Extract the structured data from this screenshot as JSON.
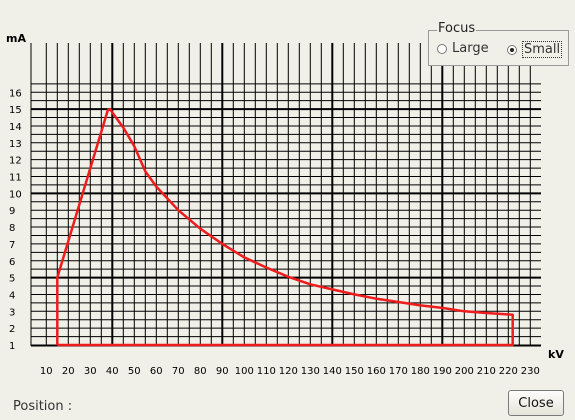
{
  "focus": {
    "title": "Focus",
    "options": [
      {
        "label": "Large",
        "selected": false
      },
      {
        "label": "Small",
        "selected": true
      }
    ]
  },
  "position_label": "Position :",
  "close_label": "Close",
  "chart_data": {
    "type": "line",
    "xlabel": "kV",
    "ylabel": "mA",
    "xlim": [
      10,
      230
    ],
    "ylim": [
      1,
      16
    ],
    "x_ticks": [
      10,
      20,
      30,
      40,
      50,
      60,
      70,
      80,
      90,
      100,
      110,
      120,
      130,
      140,
      150,
      160,
      170,
      180,
      190,
      200,
      210,
      220,
      230
    ],
    "y_ticks": [
      1,
      2,
      3,
      4,
      5,
      6,
      7,
      8,
      9,
      10,
      11,
      12,
      13,
      14,
      15,
      16
    ],
    "grid": true,
    "major_x_lines": [
      40,
      90,
      140,
      190
    ],
    "major_y_lines": [
      5,
      10,
      15
    ],
    "series": [
      {
        "color": "#ee1c1c",
        "x": [
          15,
          15,
          38,
          39,
          40,
          45,
          50,
          55,
          60,
          70,
          80,
          90,
          100,
          110,
          120,
          130,
          140,
          150,
          160,
          170,
          180,
          190,
          200,
          210,
          222,
          222,
          15
        ],
        "y": [
          1,
          5,
          14.95,
          15,
          14.8,
          13.9,
          12.8,
          11.3,
          10.4,
          9.0,
          7.9,
          7.0,
          6.2,
          5.6,
          5.05,
          4.6,
          4.3,
          4.0,
          3.75,
          3.55,
          3.35,
          3.2,
          3.0,
          2.9,
          2.8,
          1,
          1
        ]
      }
    ]
  }
}
